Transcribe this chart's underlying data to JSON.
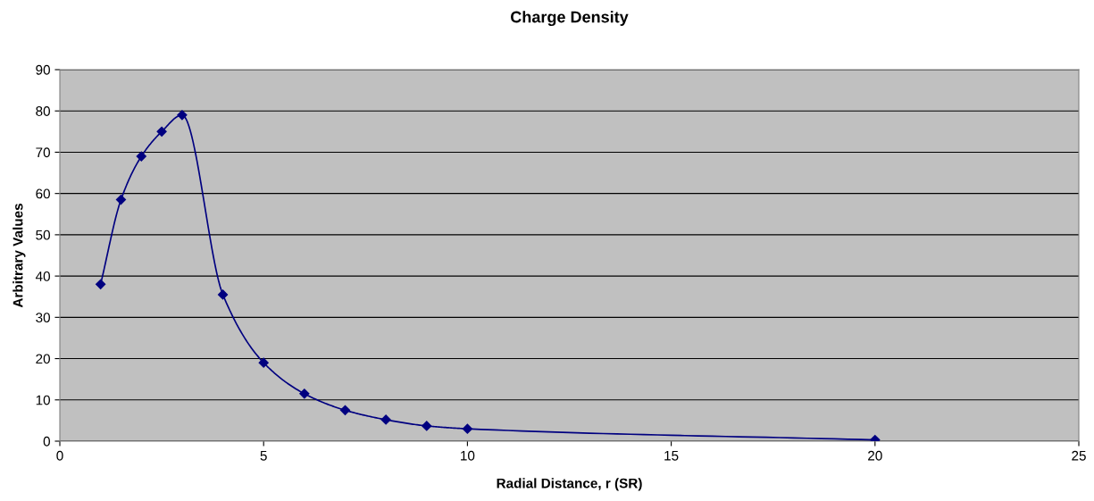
{
  "chart_data": {
    "type": "line",
    "title": "Charge Density",
    "xlabel": "Radial Distance, r (SR)",
    "ylabel": "Arbitrary Values",
    "series": [
      {
        "color": "#000080",
        "x": [
          1,
          1.5,
          2,
          2.5,
          3,
          4,
          5,
          6,
          7,
          8,
          9,
          10,
          20
        ],
        "values": [
          38,
          58.5,
          69,
          75,
          79,
          35.5,
          19,
          11.5,
          7.5,
          5.2,
          3.7,
          3,
          0.3
        ]
      }
    ],
    "xlim": [
      0,
      25
    ],
    "xticks": [
      0,
      5,
      10,
      15,
      20,
      25
    ],
    "ylim": [
      0,
      90
    ],
    "yticks": [
      0,
      10,
      20,
      30,
      40,
      50,
      60,
      70,
      80,
      90
    ],
    "grid": "y",
    "marker": "diamond",
    "line_style": "solid",
    "legend": false
  }
}
